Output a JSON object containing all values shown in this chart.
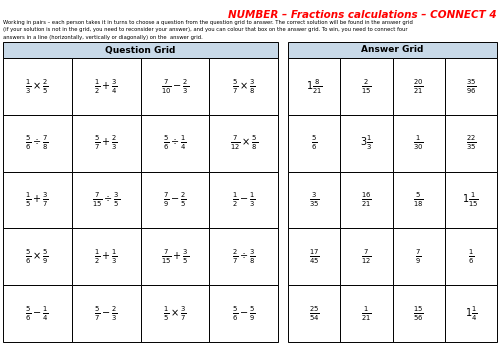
{
  "title": "NUMBER – Fractions calculations – CONNECT 4",
  "title_color": "#ff0000",
  "question_grid_title": "Question Grid",
  "answer_grid_title": "Answer Grid",
  "header_bg": "#c8d9e8",
  "question_cells": [
    [
      "\\frac{1}{3}\\times\\frac{2}{5}",
      "\\frac{1}{2}+\\frac{3}{4}",
      "\\frac{7}{10}-\\frac{2}{3}",
      "\\frac{5}{7}\\times\\frac{3}{8}"
    ],
    [
      "\\frac{5}{6}\\div\\frac{7}{8}",
      "\\frac{5}{7}+\\frac{2}{3}",
      "\\frac{5}{6}\\div\\frac{1}{4}",
      "\\frac{7}{12}\\times\\frac{5}{8}"
    ],
    [
      "\\frac{1}{5}+\\frac{3}{7}",
      "\\frac{7}{15}\\div\\frac{3}{5}",
      "\\frac{7}{9}-\\frac{2}{5}",
      "\\frac{1}{2}-\\frac{1}{3}"
    ],
    [
      "\\frac{5}{6}\\times\\frac{5}{9}",
      "\\frac{1}{2}+\\frac{1}{3}",
      "\\frac{7}{15}+\\frac{3}{5}",
      "\\frac{2}{7}\\div\\frac{3}{8}"
    ],
    [
      "\\frac{5}{6}-\\frac{1}{4}",
      "\\frac{5}{7}-\\frac{2}{3}",
      "\\frac{1}{5}\\times\\frac{3}{7}",
      "\\frac{5}{6}-\\frac{5}{9}"
    ]
  ],
  "answer_cells": [
    [
      "1\\frac{8}{21}",
      "\\frac{2}{15}",
      "\\frac{20}{21}",
      "\\frac{35}{96}"
    ],
    [
      "\\frac{5}{6}",
      "3\\frac{1}{3}",
      "\\frac{1}{30}",
      "\\frac{22}{35}"
    ],
    [
      "\\frac{3}{35}",
      "\\frac{16}{21}",
      "\\frac{5}{18}",
      "1\\frac{1}{15}"
    ],
    [
      "\\frac{17}{45}",
      "\\frac{7}{12}",
      "\\frac{7}{9}",
      "\\frac{1}{6}"
    ],
    [
      "\\frac{25}{54}",
      "\\frac{1}{21}",
      "\\frac{15}{56}",
      "1\\frac{1}{4}"
    ]
  ],
  "instruction_lines": [
    "Working in pairs – each person takes it in turns to choose a question from the question grid to answer. The correct solution will be found in the answer grid",
    "(if your solution is not in the grid, you need to reconsider your answer), and you can colour that box on the answer grid. To win, you need to connect four",
    "answers in a line (horizontally, vertically or diagonally) on the  answer grid."
  ]
}
